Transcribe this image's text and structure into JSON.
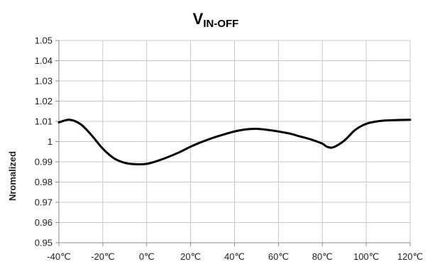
{
  "chart_data": {
    "type": "line",
    "title": "V",
    "title_subscript": "IN-OFF",
    "xlabel": "",
    "ylabel": "Nromalized",
    "x": [
      -40,
      -35,
      -30,
      -25,
      -20,
      -15,
      -10,
      -5,
      0,
      5,
      10,
      15,
      20,
      25,
      30,
      35,
      40,
      45,
      50,
      55,
      60,
      65,
      70,
      75,
      80,
      82,
      85,
      90,
      95,
      100,
      105,
      110,
      115,
      120
    ],
    "series": [
      {
        "values": [
          1.0095,
          1.0108,
          1.0085,
          1.003,
          0.9965,
          0.9918,
          0.9895,
          0.9888,
          0.989,
          0.9905,
          0.9925,
          0.9948,
          0.9975,
          0.9998,
          1.0018,
          1.0035,
          1.005,
          1.006,
          1.0063,
          1.0058,
          1.005,
          1.004,
          1.0025,
          1.001,
          0.999,
          0.9975,
          0.9972,
          1.0005,
          1.0058,
          1.0088,
          1.01,
          1.0105,
          1.0107,
          1.0108
        ],
        "color": "#000000"
      }
    ],
    "ylim": [
      0.95,
      1.05
    ],
    "xlim": [
      -40,
      120
    ],
    "xticks": [
      -40,
      -20,
      0,
      20,
      40,
      60,
      80,
      100,
      120
    ],
    "xtick_labels": [
      "-40℃",
      "-20℃",
      "0℃",
      "20℃",
      "40℃",
      "60℃",
      "80℃",
      "100℃",
      "120℃"
    ],
    "yticks": [
      0.95,
      0.96,
      0.97,
      0.98,
      0.99,
      1,
      1.01,
      1.02,
      1.03,
      1.04,
      1.05
    ],
    "ytick_labels": [
      "0.95",
      "0.96",
      "0.97",
      "0.98",
      "0.99",
      "1",
      "1.01",
      "1.02",
      "1.03",
      "1.04",
      "1.05"
    ],
    "grid": true,
    "legend": "none",
    "colors": {
      "grid": "#c8c8c8",
      "axis": "#8c8c8c",
      "line": "#000000"
    }
  }
}
